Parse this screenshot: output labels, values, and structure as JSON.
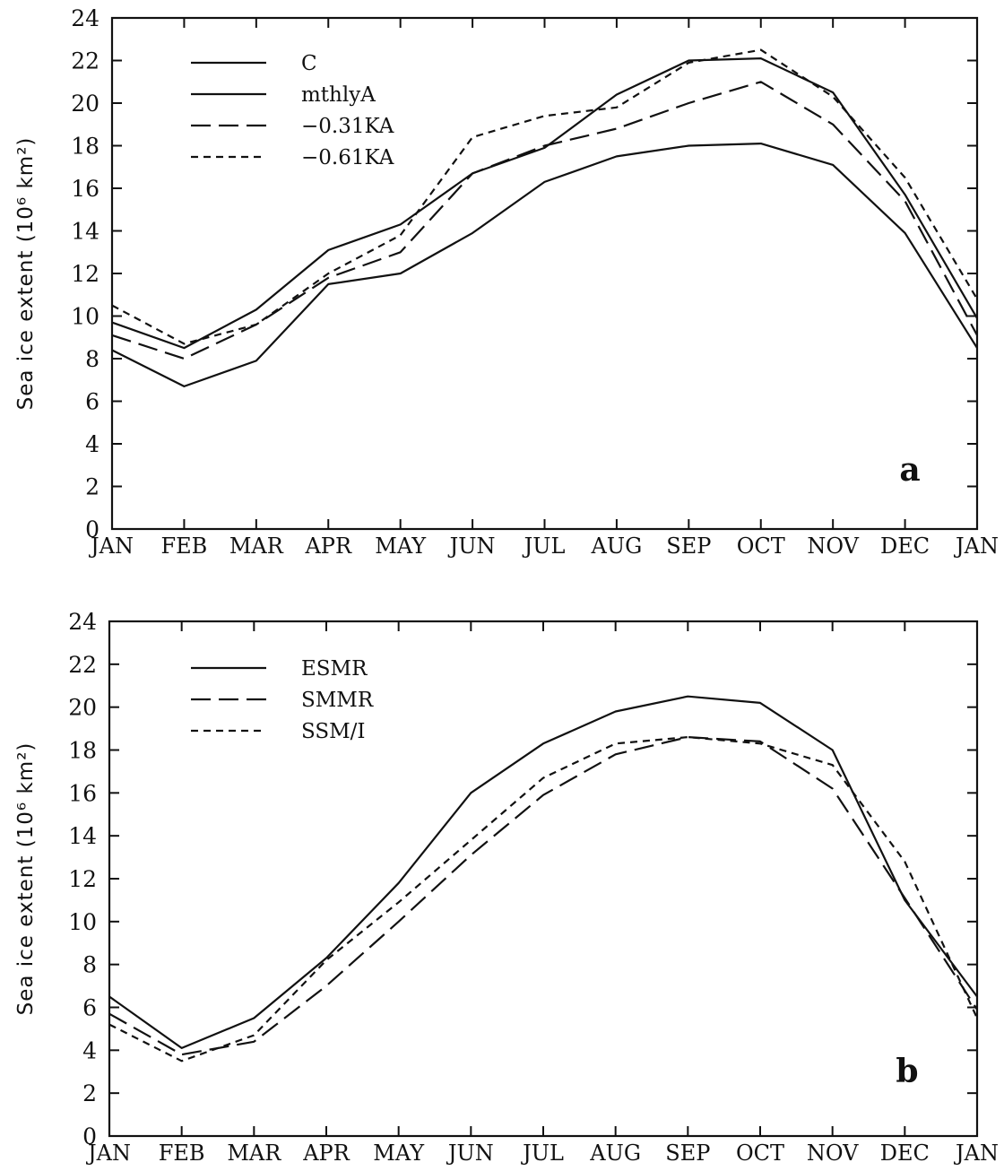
{
  "chart_data": [
    {
      "type": "line",
      "panel_label": "a",
      "ylabel": "Sea ice extent (10⁶ km²)",
      "ylim": [
        0,
        24
      ],
      "yticks": [
        "0",
        "2",
        "4",
        "6",
        "8",
        "10",
        "12",
        "14",
        "16",
        "18",
        "20",
        "22",
        "24"
      ],
      "categories": [
        "JAN",
        "FEB",
        "MAR",
        "APR",
        "MAY",
        "JUN",
        "JUL",
        "AUG",
        "SEP",
        "OCT",
        "NOV",
        "DEC",
        "JAN"
      ],
      "legend_position": "top-left",
      "series": [
        {
          "name": "C",
          "dash": "solid",
          "values": [
            8.4,
            6.7,
            7.9,
            11.5,
            12.0,
            13.9,
            16.3,
            17.5,
            18.0,
            18.1,
            17.1,
            13.9,
            8.5
          ]
        },
        {
          "name": "mthlyA",
          "dash": "solid",
          "values": [
            9.7,
            8.5,
            10.3,
            13.1,
            14.3,
            16.7,
            17.9,
            20.4,
            22.0,
            22.1,
            20.5,
            15.7,
            9.9
          ]
        },
        {
          "name": "−0.31KA",
          "dash": "long",
          "values": [
            9.1,
            8.0,
            9.6,
            11.8,
            13.0,
            16.7,
            18.0,
            18.8,
            20.0,
            21.0,
            19.0,
            15.4,
            9.1
          ]
        },
        {
          "name": "−0.61KA",
          "dash": "short",
          "values": [
            10.5,
            8.7,
            9.6,
            12.0,
            13.8,
            18.4,
            19.4,
            19.8,
            21.9,
            22.5,
            20.3,
            16.5,
            10.8
          ]
        }
      ]
    },
    {
      "type": "line",
      "panel_label": "b",
      "ylabel": "Sea ice extent (10⁶ km²)",
      "ylim": [
        0,
        24
      ],
      "yticks": [
        "0",
        "2",
        "4",
        "6",
        "8",
        "10",
        "12",
        "14",
        "16",
        "18",
        "20",
        "22",
        "24"
      ],
      "categories": [
        "JAN",
        "FEB",
        "MAR",
        "APR",
        "MAY",
        "JUN",
        "JUL",
        "AUG",
        "SEP",
        "OCT",
        "NOV",
        "DEC",
        "JAN"
      ],
      "legend_position": "top-left",
      "series": [
        {
          "name": "ESMR",
          "dash": "solid",
          "values": [
            6.5,
            4.1,
            5.5,
            8.3,
            11.8,
            16.0,
            18.3,
            19.8,
            20.5,
            20.2,
            18.0,
            11.0,
            6.5
          ]
        },
        {
          "name": "SMMR",
          "dash": "long",
          "values": [
            5.7,
            3.8,
            4.4,
            7.0,
            10.0,
            13.1,
            15.9,
            17.8,
            18.6,
            18.4,
            16.2,
            11.1,
            5.9
          ]
        },
        {
          "name": "SSM/I",
          "dash": "short",
          "values": [
            5.2,
            3.5,
            4.7,
            8.2,
            10.9,
            13.8,
            16.7,
            18.3,
            18.6,
            18.3,
            17.3,
            12.8,
            5.5
          ]
        }
      ]
    }
  ]
}
